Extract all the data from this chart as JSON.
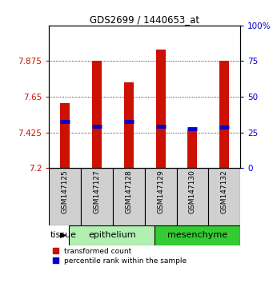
{
  "title": "GDS2699 / 1440653_at",
  "samples": [
    "GSM147125",
    "GSM147127",
    "GSM147128",
    "GSM147129",
    "GSM147130",
    "GSM147132"
  ],
  "bar_tops": [
    7.61,
    7.875,
    7.74,
    7.95,
    7.44,
    7.875
  ],
  "bar_bottom": 7.2,
  "percentile_values": [
    7.495,
    7.465,
    7.495,
    7.465,
    7.45,
    7.46
  ],
  "ylim_left": [
    7.2,
    8.1
  ],
  "ylim_right": [
    0,
    100
  ],
  "yticks_left": [
    7.2,
    7.425,
    7.65,
    7.875
  ],
  "ytick_labels_left": [
    "7.2",
    "7.425",
    "7.65",
    "7.875"
  ],
  "yticks_right": [
    0,
    25,
    50,
    75,
    100
  ],
  "ytick_labels_right": [
    "0",
    "25",
    "50",
    "75",
    "100%"
  ],
  "groups": [
    {
      "label": "epithelium",
      "indices": [
        0,
        1,
        2
      ],
      "color": "#b2f0b2"
    },
    {
      "label": "mesenchyme",
      "indices": [
        3,
        4,
        5
      ],
      "color": "#33cc33"
    }
  ],
  "bar_color": "#cc1100",
  "blue_color": "#0000cc",
  "bg_color": "#ffffff",
  "sample_area_color": "#d0d0d0",
  "left_axis_color": "#cc1100",
  "right_axis_color": "#0000cc",
  "bar_width": 0.3
}
